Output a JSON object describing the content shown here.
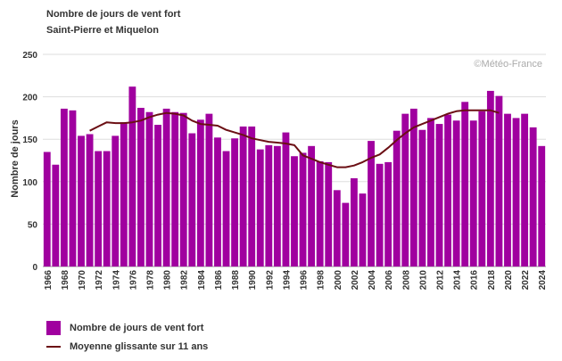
{
  "title": "Nombre de jours de vent fort",
  "subtitle": "Saint-Pierre et Miquelon",
  "watermark": "©Météo-France",
  "colors": {
    "bar": "#a0009f",
    "line": "#6b0f14",
    "grid": "#dddddd",
    "axis_text": "#333333"
  },
  "legend": {
    "bar_label": "Nombre de jours de vent fort",
    "line_label": "Moyenne glissante sur 11 ans"
  },
  "chart_data": {
    "type": "bar",
    "title": "Nombre de jours de vent fort",
    "subtitle": "Saint-Pierre et Miquelon",
    "xlabel": "",
    "ylabel": "Nombre de jours",
    "ylim": [
      0,
      250
    ],
    "yticks": [
      0,
      50,
      100,
      150,
      200,
      250
    ],
    "grid": true,
    "legend_position": "bottom-left",
    "categories": [
      "1966",
      "1967",
      "1968",
      "1969",
      "1970",
      "1971",
      "1972",
      "1973",
      "1974",
      "1975",
      "1976",
      "1977",
      "1978",
      "1979",
      "1980",
      "1981",
      "1982",
      "1983",
      "1984",
      "1985",
      "1986",
      "1987",
      "1988",
      "1989",
      "1990",
      "1991",
      "1992",
      "1993",
      "1994",
      "1995",
      "1996",
      "1997",
      "1998",
      "1999",
      "2000",
      "2001",
      "2002",
      "2003",
      "2004",
      "2005",
      "2006",
      "2007",
      "2008",
      "2009",
      "2010",
      "2011",
      "2012",
      "2013",
      "2014",
      "2015",
      "2016",
      "2017",
      "2018",
      "2019",
      "2020",
      "2021",
      "2022",
      "2023",
      "2024"
    ],
    "xtick_labels": [
      "1966",
      "1968",
      "1970",
      "1972",
      "1974",
      "1976",
      "1978",
      "1980",
      "1982",
      "1984",
      "1986",
      "1988",
      "1990",
      "1992",
      "1994",
      "1996",
      "1998",
      "2000",
      "2002",
      "2004",
      "2006",
      "2008",
      "2010",
      "2012",
      "2014",
      "2016",
      "2018",
      "2020",
      "2022",
      "2024"
    ],
    "series": [
      {
        "name": "Nombre de jours de vent fort",
        "type": "bar",
        "values": [
          135,
          120,
          186,
          184,
          154,
          156,
          136,
          136,
          154,
          170,
          212,
          187,
          182,
          167,
          186,
          182,
          181,
          157,
          173,
          180,
          152,
          136,
          151,
          165,
          165,
          138,
          143,
          142,
          158,
          130,
          134,
          142,
          124,
          123,
          90,
          75,
          104,
          86,
          148,
          121,
          123,
          160,
          180,
          186,
          161,
          175,
          168,
          179,
          172,
          194,
          172,
          183,
          207,
          201,
          180,
          175,
          180,
          164,
          142
        ]
      },
      {
        "name": "Moyenne glissante sur 11 ans",
        "type": "line",
        "x": [
          "1971",
          "1972",
          "1973",
          "1974",
          "1975",
          "1976",
          "1977",
          "1978",
          "1979",
          "1980",
          "1981",
          "1982",
          "1983",
          "1984",
          "1985",
          "1986",
          "1987",
          "1988",
          "1989",
          "1990",
          "1991",
          "1992",
          "1993",
          "1994",
          "1995",
          "1996",
          "1997",
          "1998",
          "1999",
          "2000",
          "2001",
          "2002",
          "2003",
          "2004",
          "2005",
          "2006",
          "2007",
          "2008",
          "2009",
          "2010",
          "2011",
          "2012",
          "2013",
          "2014",
          "2015",
          "2016",
          "2017",
          "2018",
          "2019"
        ],
        "values": [
          160,
          165,
          170,
          169,
          169,
          170,
          172,
          176,
          179,
          181,
          180,
          178,
          172,
          168,
          167,
          166,
          161,
          158,
          155,
          151,
          149,
          147,
          146,
          145,
          143,
          131,
          127,
          123,
          120,
          117,
          117,
          119,
          123,
          128,
          132,
          140,
          149,
          157,
          164,
          168,
          172,
          176,
          180,
          183,
          184,
          184,
          184,
          184,
          181
        ]
      }
    ]
  }
}
